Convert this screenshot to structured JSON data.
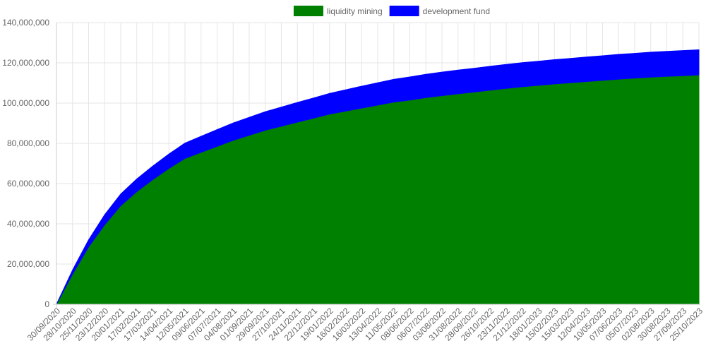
{
  "chart_data": {
    "type": "area",
    "stacked": true,
    "legend_position": "top-center",
    "grid": true,
    "ylim": [
      0,
      140000000
    ],
    "y_ticks": [
      0,
      20000000,
      40000000,
      60000000,
      80000000,
      100000000,
      120000000,
      140000000
    ],
    "x": [
      "30/09/2020",
      "28/10/2020",
      "25/11/2020",
      "23/12/2020",
      "20/01/2021",
      "17/02/2021",
      "17/03/2021",
      "14/04/2021",
      "12/05/2021",
      "09/06/2021",
      "07/07/2021",
      "04/08/2021",
      "01/09/2021",
      "29/09/2021",
      "27/10/2021",
      "24/11/2021",
      "22/12/2021",
      "19/01/2022",
      "16/02/2022",
      "16/03/2022",
      "13/04/2022",
      "11/05/2022",
      "08/06/2022",
      "06/07/2022",
      "03/08/2022",
      "31/08/2022",
      "28/09/2022",
      "26/10/2022",
      "23/11/2022",
      "21/12/2022",
      "18/01/2023",
      "15/02/2023",
      "15/03/2023",
      "12/04/2023",
      "10/05/2023",
      "07/06/2023",
      "05/07/2023",
      "02/08/2023",
      "30/08/2023",
      "27/09/2023",
      "25/10/2023"
    ],
    "series": [
      {
        "name": "liquidity mining",
        "color": "#008000",
        "values": [
          0,
          15000000,
          28500000,
          39500000,
          49000000,
          56000000,
          62000000,
          67500000,
          72500000,
          75500000,
          78500000,
          81500000,
          84000000,
          86500000,
          88500000,
          90500000,
          92500000,
          94500000,
          96000000,
          97500000,
          99000000,
          100500000,
          101500000,
          102700000,
          103700000,
          104600000,
          105500000,
          106400000,
          107300000,
          108100000,
          108800000,
          109500000,
          110100000,
          110700000,
          111300000,
          111900000,
          112400000,
          112900000,
          113300000,
          113600000,
          114000000
        ]
      },
      {
        "name": "development fund",
        "color": "#0000ff",
        "values": [
          0,
          2000000,
          3500000,
          5000000,
          5800000,
          6300000,
          6700000,
          7200000,
          7600000,
          8000000,
          8300000,
          8600000,
          8900000,
          9200000,
          9500000,
          9800000,
          10000000,
          10300000,
          10600000,
          10900000,
          11100000,
          11300000,
          11500000,
          11600000,
          11700000,
          11800000,
          11800000,
          11900000,
          11900000,
          12000000,
          12000000,
          12100000,
          12100000,
          12200000,
          12200000,
          12300000,
          12300000,
          12400000,
          12400000,
          12500000,
          12500000
        ]
      }
    ]
  }
}
